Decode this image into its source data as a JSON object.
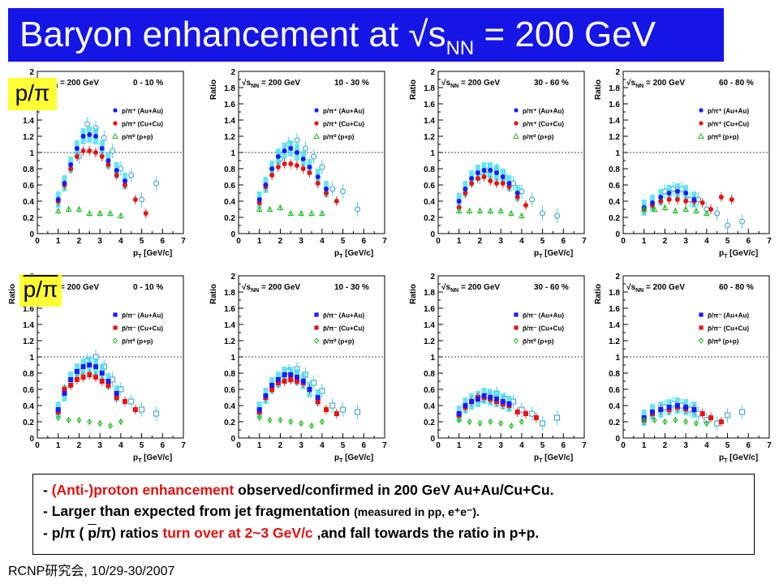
{
  "title": {
    "text": "Baryon enhancement at √s",
    "sub": "NN",
    "tail": " = 200 GeV"
  },
  "row_tags": {
    "proton": "p/π",
    "antiproton": "p/π"
  },
  "axes": {
    "y_title": "Ratio",
    "x_title": "p",
    "x_title_sub": "T",
    "x_title_unit": " [GeV/c]",
    "y_ticks": [
      "0",
      "0.2",
      "0.4",
      "0.6",
      "0.8",
      "1",
      "1.2",
      "1.4",
      "1.6",
      "1.8",
      "2"
    ],
    "x_ticks": [
      "0",
      "1",
      "2",
      "3",
      "4",
      "5",
      "6",
      "7"
    ],
    "energy_label": "√s",
    "energy_sub": "NN",
    "energy_tail": " = 200 GeV"
  },
  "centralities": [
    "0 - 10 %",
    "10 - 30 %",
    "30 - 60 %",
    "60 - 80 %"
  ],
  "legends": {
    "proton": [
      "p/π⁺ (Au+Au)",
      "p/π⁺ (Cu+Cu)",
      "p/π⁰ (p+p)"
    ],
    "antiproton": [
      "p̄/π⁻ (Au+Au)",
      "p̄/π⁻ (Cu+Cu)",
      "p̄/π⁰ (p+p)"
    ]
  },
  "colors": {
    "auau": "#1a1aff",
    "cucu": "#ee1111",
    "pp": "#22bb22",
    "cyan": "#33ddee",
    "title_bg": "#1515e6",
    "tag_bg": "#ffff33"
  },
  "chart_data": [
    {
      "type": "scatter",
      "row": "proton",
      "centrality": "0 - 10 %",
      "xlim": [
        0,
        7
      ],
      "ylim": [
        0,
        2
      ],
      "series": [
        {
          "name": "p/π⁺ (Au+Au)",
          "x": [
            1.0,
            1.3,
            1.6,
            1.9,
            2.2,
            2.5,
            2.8,
            3.1,
            3.4,
            3.8,
            4.2
          ],
          "y": [
            0.42,
            0.62,
            0.85,
            1.05,
            1.2,
            1.22,
            1.2,
            1.05,
            0.9,
            0.78,
            0.65
          ]
        },
        {
          "name": "p/π⁺ (Cu+Cu)",
          "x": [
            1.0,
            1.3,
            1.6,
            1.9,
            2.2,
            2.5,
            2.8,
            3.1,
            3.4,
            3.8,
            4.2,
            4.7,
            5.2
          ],
          "y": [
            0.4,
            0.6,
            0.8,
            0.95,
            1.02,
            1.02,
            1.0,
            0.95,
            0.85,
            0.72,
            0.6,
            0.42,
            0.25
          ]
        },
        {
          "name": "p/π⁰ (p+p)",
          "x": [
            1.0,
            1.5,
            2.0,
            2.5,
            3.0,
            3.5,
            4.0
          ],
          "y": [
            0.28,
            0.3,
            0.3,
            0.25,
            0.25,
            0.25,
            0.22
          ]
        },
        {
          "name": "open cyan",
          "x": [
            2.0,
            2.4,
            2.8,
            3.2,
            3.6,
            4.0,
            4.5,
            5.0,
            5.7
          ],
          "y": [
            0.95,
            1.35,
            1.3,
            1.18,
            1.02,
            0.8,
            0.72,
            0.42,
            0.62
          ]
        }
      ]
    },
    {
      "type": "scatter",
      "row": "proton",
      "centrality": "10 - 30 %",
      "xlim": [
        0,
        7
      ],
      "ylim": [
        0,
        2
      ],
      "series": [
        {
          "name": "p/π⁺ (Au+Au)",
          "x": [
            1.0,
            1.3,
            1.6,
            1.9,
            2.2,
            2.5,
            2.8,
            3.1,
            3.4,
            3.8,
            4.2
          ],
          "y": [
            0.42,
            0.6,
            0.8,
            0.95,
            1.02,
            1.05,
            1.0,
            0.92,
            0.82,
            0.7,
            0.55
          ]
        },
        {
          "name": "p/π⁺ (Cu+Cu)",
          "x": [
            1.0,
            1.3,
            1.6,
            1.9,
            2.2,
            2.5,
            2.8,
            3.1,
            3.4,
            3.8,
            4.2,
            4.7
          ],
          "y": [
            0.38,
            0.58,
            0.72,
            0.82,
            0.86,
            0.86,
            0.84,
            0.8,
            0.75,
            0.62,
            0.5,
            0.4
          ]
        },
        {
          "name": "p/π⁰ (p+p)",
          "x": [
            1.0,
            1.5,
            2.0,
            2.5,
            3.0,
            3.5,
            4.0
          ],
          "y": [
            0.3,
            0.3,
            0.32,
            0.25,
            0.25,
            0.25,
            0.25
          ]
        },
        {
          "name": "open cyan",
          "x": [
            2.0,
            2.4,
            2.8,
            3.2,
            3.6,
            4.0,
            4.5,
            5.0,
            5.7
          ],
          "y": [
            0.92,
            1.1,
            1.15,
            1.05,
            0.95,
            0.82,
            0.55,
            0.52,
            0.3
          ]
        }
      ]
    },
    {
      "type": "scatter",
      "row": "proton",
      "centrality": "30 - 60 %",
      "xlim": [
        0,
        7
      ],
      "ylim": [
        0,
        2
      ],
      "series": [
        {
          "name": "p/π⁺ (Au+Au)",
          "x": [
            1.0,
            1.3,
            1.6,
            1.9,
            2.2,
            2.5,
            2.8,
            3.1,
            3.4,
            3.8
          ],
          "y": [
            0.4,
            0.55,
            0.68,
            0.75,
            0.78,
            0.78,
            0.75,
            0.7,
            0.62,
            0.5
          ]
        },
        {
          "name": "p/π⁺ (Cu+Cu)",
          "x": [
            1.0,
            1.3,
            1.6,
            1.9,
            2.2,
            2.5,
            2.8,
            3.1,
            3.4,
            3.8,
            4.2
          ],
          "y": [
            0.32,
            0.5,
            0.62,
            0.68,
            0.7,
            0.65,
            0.62,
            0.62,
            0.58,
            0.45,
            0.35
          ]
        },
        {
          "name": "p/π⁰ (p+p)",
          "x": [
            1.0,
            1.5,
            2.0,
            2.5,
            3.0,
            3.5,
            4.0
          ],
          "y": [
            0.28,
            0.28,
            0.28,
            0.28,
            0.28,
            0.25,
            0.22
          ]
        },
        {
          "name": "open cyan",
          "x": [
            2.0,
            2.4,
            2.8,
            3.2,
            3.6,
            4.0,
            4.5,
            5.0,
            5.7
          ],
          "y": [
            0.7,
            0.78,
            0.78,
            0.7,
            0.62,
            0.52,
            0.42,
            0.25,
            0.22
          ]
        }
      ]
    },
    {
      "type": "scatter",
      "row": "proton",
      "centrality": "60 - 80 %",
      "xlim": [
        0,
        7
      ],
      "ylim": [
        0,
        2
      ],
      "series": [
        {
          "name": "p/π⁺ (Au+Au)",
          "x": [
            1.0,
            1.4,
            1.8,
            2.2,
            2.6,
            3.0,
            3.4
          ],
          "y": [
            0.32,
            0.38,
            0.45,
            0.5,
            0.52,
            0.5,
            0.42
          ]
        },
        {
          "name": "p/π⁺ (Cu+Cu)",
          "x": [
            1.0,
            1.4,
            1.8,
            2.2,
            2.6,
            3.0,
            3.4,
            3.8,
            4.2,
            4.7,
            5.2
          ],
          "y": [
            0.3,
            0.35,
            0.4,
            0.42,
            0.42,
            0.4,
            0.4,
            0.38,
            0.3,
            0.45,
            0.42
          ]
        },
        {
          "name": "p/π⁰ (p+p)",
          "x": [
            1.0,
            1.5,
            2.0,
            2.5,
            3.0,
            3.5,
            4.0
          ],
          "y": [
            0.3,
            0.3,
            0.32,
            0.28,
            0.3,
            0.28,
            0.25
          ]
        },
        {
          "name": "open cyan",
          "x": [
            2.0,
            2.4,
            2.8,
            3.2,
            3.6,
            4.0,
            4.5,
            5.0,
            5.7
          ],
          "y": [
            0.52,
            0.55,
            0.55,
            0.42,
            0.42,
            0.3,
            0.25,
            0.1,
            0.15
          ]
        }
      ]
    },
    {
      "type": "scatter",
      "row": "antiproton",
      "centrality": "0 - 10 %",
      "xlim": [
        0,
        7
      ],
      "ylim": [
        0,
        2
      ],
      "series": [
        {
          "name": "p̄/π⁻ (Au+Au)",
          "x": [
            1.0,
            1.3,
            1.6,
            1.9,
            2.2,
            2.5,
            2.8,
            3.1,
            3.4,
            3.8
          ],
          "y": [
            0.35,
            0.55,
            0.72,
            0.82,
            0.88,
            0.9,
            0.88,
            0.8,
            0.7,
            0.55
          ]
        },
        {
          "name": "p̄/π⁻ (Cu+Cu)",
          "x": [
            1.0,
            1.3,
            1.6,
            1.9,
            2.2,
            2.5,
            2.8,
            3.1,
            3.4,
            3.8,
            4.2,
            4.7
          ],
          "y": [
            0.32,
            0.6,
            0.65,
            0.72,
            0.75,
            0.78,
            0.75,
            0.7,
            0.65,
            0.5,
            0.45,
            0.35
          ]
        },
        {
          "name": "p̄/π⁰ (p+p)",
          "x": [
            1.0,
            1.5,
            2.0,
            2.5,
            3.0,
            3.5,
            4.0
          ],
          "y": [
            0.25,
            0.22,
            0.22,
            0.2,
            0.18,
            0.15,
            0.2
          ]
        },
        {
          "name": "open cyan",
          "x": [
            2.0,
            2.4,
            2.8,
            3.2,
            3.6,
            4.0,
            4.5,
            5.0,
            5.7
          ],
          "y": [
            0.82,
            0.95,
            1.0,
            0.88,
            0.72,
            0.6,
            0.45,
            0.35,
            0.3
          ]
        }
      ]
    },
    {
      "type": "scatter",
      "row": "antiproton",
      "centrality": "10 - 30 %",
      "xlim": [
        0,
        7
      ],
      "ylim": [
        0,
        2
      ],
      "series": [
        {
          "name": "p̄/π⁻ (Au+Au)",
          "x": [
            1.0,
            1.3,
            1.6,
            1.9,
            2.2,
            2.5,
            2.8,
            3.1,
            3.4,
            3.8
          ],
          "y": [
            0.35,
            0.52,
            0.65,
            0.72,
            0.78,
            0.78,
            0.75,
            0.7,
            0.6,
            0.5
          ]
        },
        {
          "name": "p̄/π⁻ (Cu+Cu)",
          "x": [
            1.0,
            1.3,
            1.6,
            1.9,
            2.2,
            2.5,
            2.8,
            3.1,
            3.4,
            3.8,
            4.2,
            4.7
          ],
          "y": [
            0.32,
            0.5,
            0.6,
            0.68,
            0.7,
            0.72,
            0.7,
            0.68,
            0.6,
            0.45,
            0.35,
            0.3
          ]
        },
        {
          "name": "p̄/π⁰ (p+p)",
          "x": [
            1.0,
            1.5,
            2.0,
            2.5,
            3.0,
            3.5,
            4.0
          ],
          "y": [
            0.25,
            0.22,
            0.22,
            0.2,
            0.18,
            0.15,
            0.2
          ]
        },
        {
          "name": "open cyan",
          "x": [
            2.0,
            2.4,
            2.8,
            3.2,
            3.6,
            4.0,
            4.5,
            5.0,
            5.7
          ],
          "y": [
            0.72,
            0.82,
            0.85,
            0.78,
            0.68,
            0.58,
            0.4,
            0.35,
            0.32
          ]
        }
      ]
    },
    {
      "type": "scatter",
      "row": "antiproton",
      "centrality": "30 - 60 %",
      "xlim": [
        0,
        7
      ],
      "ylim": [
        0,
        2
      ],
      "series": [
        {
          "name": "p̄/π⁻ (Au+Au)",
          "x": [
            1.0,
            1.3,
            1.6,
            1.9,
            2.2,
            2.5,
            2.8,
            3.1,
            3.4
          ],
          "y": [
            0.3,
            0.4,
            0.45,
            0.48,
            0.52,
            0.5,
            0.48,
            0.45,
            0.42
          ]
        },
        {
          "name": "p̄/π⁻ (Cu+Cu)",
          "x": [
            1.0,
            1.3,
            1.6,
            1.9,
            2.2,
            2.5,
            2.8,
            3.1,
            3.4,
            3.8,
            4.2,
            4.7
          ],
          "y": [
            0.28,
            0.38,
            0.45,
            0.5,
            0.5,
            0.48,
            0.45,
            0.42,
            0.4,
            0.32,
            0.3,
            0.25
          ]
        },
        {
          "name": "p̄/π⁰ (p+p)",
          "x": [
            1.0,
            1.5,
            2.0,
            2.5,
            3.0,
            3.5,
            4.0
          ],
          "y": [
            0.22,
            0.2,
            0.18,
            0.2,
            0.18,
            0.15,
            0.2
          ]
        },
        {
          "name": "open cyan",
          "x": [
            2.0,
            2.4,
            2.8,
            3.2,
            3.6,
            4.0,
            4.5,
            5.0,
            5.7
          ],
          "y": [
            0.48,
            0.52,
            0.55,
            0.48,
            0.45,
            0.35,
            0.3,
            0.18,
            0.25
          ]
        }
      ]
    },
    {
      "type": "scatter",
      "row": "antiproton",
      "centrality": "60 - 80 %",
      "xlim": [
        0,
        7
      ],
      "ylim": [
        0,
        2
      ],
      "series": [
        {
          "name": "p̄/π⁻ (Au+Au)",
          "x": [
            1.0,
            1.4,
            1.8,
            2.2,
            2.6,
            3.0,
            3.4
          ],
          "y": [
            0.25,
            0.32,
            0.35,
            0.38,
            0.4,
            0.38,
            0.35
          ]
        },
        {
          "name": "p̄/π⁻ (Cu+Cu)",
          "x": [
            1.0,
            1.4,
            1.8,
            2.2,
            2.6,
            3.0,
            3.4,
            3.8,
            4.2,
            4.7
          ],
          "y": [
            0.22,
            0.3,
            0.35,
            0.35,
            0.38,
            0.36,
            0.35,
            0.3,
            0.25,
            0.2
          ]
        },
        {
          "name": "p̄/π⁰ (p+p)",
          "x": [
            1.0,
            1.5,
            2.0,
            2.5,
            3.0,
            3.5,
            4.0
          ],
          "y": [
            0.22,
            0.22,
            0.2,
            0.22,
            0.2,
            0.18,
            0.18
          ]
        },
        {
          "name": "open cyan",
          "x": [
            2.0,
            2.4,
            2.8,
            3.2,
            3.6,
            4.0,
            4.5,
            5.0,
            5.7
          ],
          "y": [
            0.38,
            0.42,
            0.4,
            0.35,
            0.3,
            0.22,
            0.18,
            0.28,
            0.32
          ]
        }
      ]
    }
  ],
  "notes": {
    "line1_a": "- ",
    "line1_red": "(Anti-)proton enhancement",
    "line1_b": " observed/confirmed in 200 GeV Au+Au/Cu+Cu.",
    "line2_a": "- Larger than expected from jet fragmentation ",
    "line2_small": "(measured in pp, e⁺e⁻).",
    "line3_a": "- p/π ( ",
    "line3_bar": "p",
    "line3_b": "/π) ratios ",
    "line3_red": "turn over at 2~3 GeV/c",
    "line3_c": " ,and fall towards the ratio in p+p."
  },
  "footer": "RCNP研究会, 10/29-30/2007"
}
